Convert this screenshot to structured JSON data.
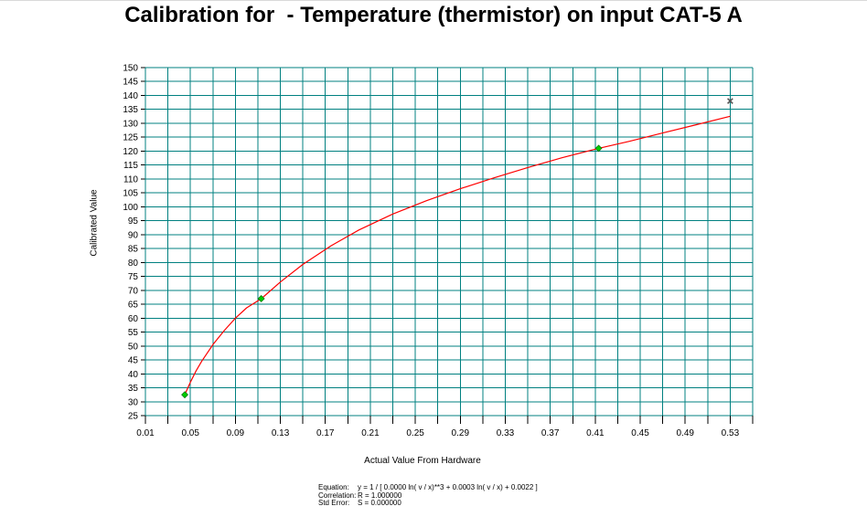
{
  "chart_data": {
    "type": "scatter",
    "title": "Calibration for  - Temperature (thermistor) on input CAT-5 A",
    "xlabel": "Actual Value From Hardware",
    "ylabel": "Calibrated Value",
    "xlim": [
      0.01,
      0.55
    ],
    "ylim": [
      25,
      150
    ],
    "x_ticks": [
      "0.01",
      "0.05",
      "0.09",
      "0.13",
      "0.17",
      "0.21",
      "0.25",
      "0.29",
      "0.33",
      "0.37",
      "0.41",
      "0.45",
      "0.49",
      "0.53"
    ],
    "y_ticks": [
      "150",
      "145",
      "140",
      "135",
      "130",
      "125",
      "120",
      "115",
      "110",
      "105",
      "100",
      "95",
      "90",
      "85",
      "80",
      "75",
      "70",
      "65",
      "60",
      "55",
      "50",
      "45",
      "40",
      "35",
      "30",
      "25"
    ],
    "grid": true,
    "points": [
      {
        "x": 0.045,
        "y": 32.5
      },
      {
        "x": 0.113,
        "y": 67.0
      },
      {
        "x": 0.413,
        "y": 121.0
      }
    ],
    "excluded_points": [
      {
        "x": 0.53,
        "y": 138.0
      }
    ],
    "fit_curve": {
      "x": [
        0.045,
        0.05,
        0.055,
        0.06,
        0.07,
        0.08,
        0.09,
        0.1,
        0.113,
        0.13,
        0.15,
        0.175,
        0.2,
        0.23,
        0.26,
        0.29,
        0.32,
        0.35,
        0.38,
        0.413,
        0.44,
        0.47,
        0.5,
        0.53
      ],
      "y": [
        32.5,
        37.0,
        41.0,
        44.5,
        50.5,
        55.5,
        60.0,
        63.7,
        67.0,
        73.0,
        79.3,
        86.0,
        91.7,
        97.4,
        102.2,
        106.5,
        110.4,
        114.1,
        117.6,
        121.0,
        123.5,
        126.5,
        129.5,
        132.5
      ]
    },
    "colors": {
      "grid": "#008080",
      "fit_line": "#ff0000",
      "point_fill": "#00cc00",
      "excluded_marker": "#555555"
    }
  },
  "equation": {
    "label": "Equation:",
    "value": "y = 1 / [ 0.0000 ln( v / x)**3 + 0.0003 ln( v / x) + 0.0022 ]"
  },
  "correlation": {
    "label": "Correlation:",
    "value": "R = 1.000000"
  },
  "std_error": {
    "label": "Std Error:",
    "value": "S = 0.000000"
  }
}
